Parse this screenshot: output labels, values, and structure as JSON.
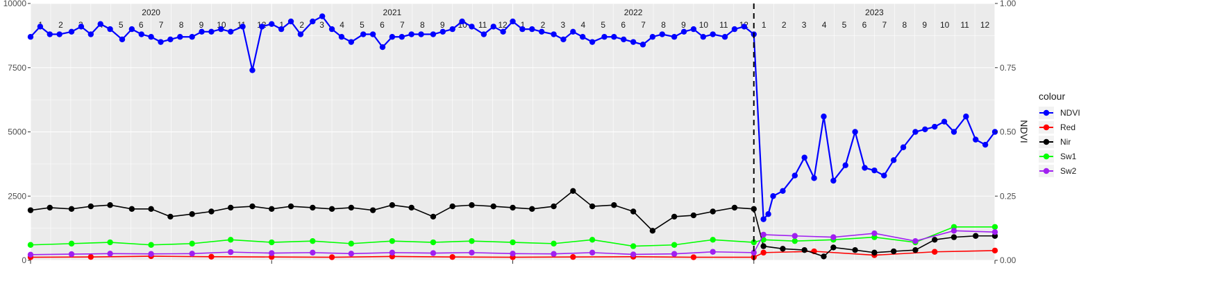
{
  "chart_data": {
    "type": "line",
    "xlabel": "",
    "ylabel_left": "",
    "ylabel_right": "NDVI",
    "ylim_left": [
      0,
      10000
    ],
    "ylim_right": [
      0,
      1
    ],
    "yticks_left": [
      "0",
      "2500",
      "5000",
      "7500",
      "10000"
    ],
    "yticks_left_values": [
      0,
      2500,
      5000,
      7500,
      10000
    ],
    "yticks_right": [
      "0.00",
      "0.25",
      "0.50",
      "0.75",
      "1.00"
    ],
    "yticks_right_values": [
      0,
      0.25,
      0.5,
      0.75,
      1.0
    ],
    "x_range": [
      2020.0,
      2024.0
    ],
    "years": [
      {
        "label": "2020",
        "value": 2020
      },
      {
        "label": "2021",
        "value": 2021
      },
      {
        "label": "2022",
        "value": 2022
      },
      {
        "label": "2023",
        "value": 2023
      }
    ],
    "month_labels": [
      "1",
      "2",
      "3",
      "4",
      "5",
      "6",
      "7",
      "8",
      "9",
      "10",
      "11",
      "12"
    ],
    "vline_x": 2023.0,
    "grid": true,
    "legend_title": "colour",
    "legend_position": "right",
    "series": [
      {
        "name": "NDVI",
        "color": "#0000ff",
        "x": [
          2020.0,
          2020.04,
          2020.08,
          2020.12,
          2020.17,
          2020.21,
          2020.25,
          2020.29,
          2020.33,
          2020.38,
          2020.42,
          2020.46,
          2020.5,
          2020.54,
          2020.58,
          2020.62,
          2020.67,
          2020.71,
          2020.75,
          2020.79,
          2020.83,
          2020.88,
          2020.92,
          2020.96,
          2021.0,
          2021.04,
          2021.08,
          2021.12,
          2021.17,
          2021.21,
          2021.25,
          2021.29,
          2021.33,
          2021.38,
          2021.42,
          2021.46,
          2021.5,
          2021.54,
          2021.58,
          2021.62,
          2021.67,
          2021.71,
          2021.75,
          2021.79,
          2021.83,
          2021.88,
          2021.92,
          2021.96,
          2022.0,
          2022.04,
          2022.08,
          2022.12,
          2022.17,
          2022.21,
          2022.25,
          2022.29,
          2022.33,
          2022.38,
          2022.42,
          2022.46,
          2022.5,
          2022.54,
          2022.58,
          2022.62,
          2022.67,
          2022.71,
          2022.75,
          2022.79,
          2022.83,
          2022.88,
          2022.92,
          2022.96,
          2023.0,
          2023.04,
          2023.06,
          2023.08,
          2023.12,
          2023.17,
          2023.21,
          2023.25,
          2023.29,
          2023.33,
          2023.38,
          2023.42,
          2023.46,
          2023.5,
          2023.54,
          2023.58,
          2023.62,
          2023.67,
          2023.71,
          2023.75,
          2023.79,
          2023.83,
          2023.88,
          2023.92,
          2023.96,
          2024.0
        ],
        "values": [
          0.87,
          0.91,
          0.88,
          0.88,
          0.89,
          0.91,
          0.88,
          0.92,
          0.9,
          0.86,
          0.9,
          0.88,
          0.87,
          0.85,
          0.86,
          0.87,
          0.87,
          0.89,
          0.89,
          0.9,
          0.89,
          0.91,
          0.74,
          0.91,
          0.92,
          0.9,
          0.93,
          0.88,
          0.93,
          0.95,
          0.9,
          0.87,
          0.85,
          0.88,
          0.88,
          0.83,
          0.87,
          0.87,
          0.88,
          0.88,
          0.88,
          0.89,
          0.9,
          0.93,
          0.91,
          0.88,
          0.91,
          0.89,
          0.93,
          0.9,
          0.9,
          0.89,
          0.88,
          0.86,
          0.89,
          0.87,
          0.85,
          0.87,
          0.87,
          0.86,
          0.85,
          0.84,
          0.87,
          0.88,
          0.87,
          0.89,
          0.9,
          0.87,
          0.88,
          0.87,
          0.9,
          0.91,
          0.88,
          0.16,
          0.18,
          0.25,
          0.27,
          0.33,
          0.4,
          0.32,
          0.56,
          0.31,
          0.37,
          0.5,
          0.36,
          0.35,
          0.33,
          0.39,
          0.44,
          0.5,
          0.51,
          0.52,
          0.54,
          0.5,
          0.56,
          0.47,
          0.45,
          0.5
        ]
      },
      {
        "name": "Red",
        "color": "#ff0000",
        "x": [
          2020.0,
          2020.25,
          2020.5,
          2020.75,
          2021.0,
          2021.25,
          2021.5,
          2021.75,
          2022.0,
          2022.25,
          2022.5,
          2022.75,
          2023.0,
          2023.04,
          2023.25,
          2023.5,
          2023.75,
          2024.0
        ],
        "values": [
          120,
          130,
          160,
          140,
          130,
          120,
          150,
          130,
          120,
          130,
          140,
          120,
          120,
          300,
          350,
          200,
          330,
          380
        ]
      },
      {
        "name": "Nir",
        "color": "#000000",
        "x": [
          2020.0,
          2020.08,
          2020.17,
          2020.25,
          2020.33,
          2020.42,
          2020.5,
          2020.58,
          2020.67,
          2020.75,
          2020.83,
          2020.92,
          2021.0,
          2021.08,
          2021.17,
          2021.25,
          2021.33,
          2021.42,
          2021.5,
          2021.58,
          2021.67,
          2021.75,
          2021.83,
          2021.92,
          2022.0,
          2022.08,
          2022.17,
          2022.25,
          2022.33,
          2022.42,
          2022.5,
          2022.58,
          2022.67,
          2022.75,
          2022.83,
          2022.92,
          2023.0,
          2023.04,
          2023.12,
          2023.21,
          2023.29,
          2023.33,
          2023.42,
          2023.5,
          2023.58,
          2023.67,
          2023.75,
          2023.83,
          2023.92,
          2024.0
        ],
        "values": [
          1950,
          2050,
          2000,
          2100,
          2150,
          2000,
          2000,
          1700,
          1800,
          1900,
          2050,
          2100,
          2000,
          2100,
          2050,
          2000,
          2050,
          1950,
          2150,
          2050,
          1700,
          2100,
          2150,
          2100,
          2050,
          2000,
          2100,
          2700,
          2100,
          2150,
          1900,
          1150,
          1700,
          1750,
          1900,
          2050,
          2000,
          550,
          450,
          400,
          150,
          500,
          400,
          300,
          350,
          400,
          800,
          900,
          950,
          950
        ]
      },
      {
        "name": "Sw1",
        "color": "#00ff00",
        "x": [
          2020.0,
          2020.17,
          2020.33,
          2020.5,
          2020.67,
          2020.83,
          2021.0,
          2021.17,
          2021.33,
          2021.5,
          2021.67,
          2021.83,
          2022.0,
          2022.17,
          2022.33,
          2022.5,
          2022.67,
          2022.83,
          2023.0,
          2023.04,
          2023.17,
          2023.33,
          2023.5,
          2023.67,
          2023.83,
          2024.0
        ],
        "values": [
          600,
          650,
          700,
          600,
          650,
          800,
          700,
          750,
          650,
          750,
          700,
          750,
          700,
          650,
          800,
          550,
          600,
          800,
          700,
          800,
          750,
          800,
          900,
          700,
          1300,
          1300
        ]
      },
      {
        "name": "Sw2",
        "color": "#a020f0",
        "x": [
          2020.0,
          2020.17,
          2020.33,
          2020.5,
          2020.67,
          2020.83,
          2021.0,
          2021.17,
          2021.33,
          2021.5,
          2021.67,
          2021.83,
          2022.0,
          2022.17,
          2022.33,
          2022.5,
          2022.67,
          2022.83,
          2023.0,
          2023.04,
          2023.17,
          2023.33,
          2023.5,
          2023.67,
          2023.83,
          2024.0
        ],
        "values": [
          220,
          240,
          260,
          250,
          260,
          320,
          280,
          300,
          260,
          300,
          280,
          300,
          260,
          250,
          300,
          230,
          250,
          330,
          300,
          1000,
          950,
          900,
          1050,
          750,
          1150,
          1100
        ]
      }
    ]
  }
}
